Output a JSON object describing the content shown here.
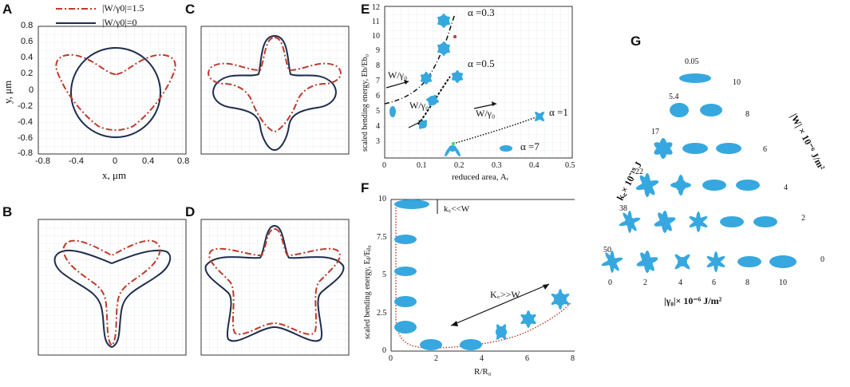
{
  "panels": {
    "A": "A",
    "B": "B",
    "C": "C",
    "D": "D",
    "E": "E",
    "F": "F",
    "G": "G"
  },
  "legend": {
    "dashed": "|W/γ0|=1.5",
    "solid": "|W/γ0|=0"
  },
  "colors": {
    "dashed": "#c0392b",
    "solid": "#1f2d4d",
    "grid": "#d7e3e6",
    "vesicle": "#36a8df"
  },
  "panelA": {
    "xlabel": "x, μm",
    "ylabel": "y, μm",
    "xticks": [
      "-0.8",
      "-0.4",
      "0",
      "0.4",
      "0.8"
    ],
    "yticks": [
      "0.8",
      "0.6",
      "0.4",
      "0.2",
      "0",
      "-0.2",
      "-0.4",
      "-0.6",
      "-0.8"
    ]
  },
  "panelE": {
    "ylabel": "scaled bending energy, Eb/Eb₀",
    "xlabel": "reduced area, Aᵣ",
    "xticks": [
      "0",
      "0.1",
      "0.2",
      "0.3",
      "0.4",
      "0.5"
    ],
    "yticks": [
      "12",
      "11",
      "10",
      "9",
      "8",
      "7",
      "6",
      "5",
      "4",
      "3"
    ],
    "alpha_labels": [
      "α =0.3",
      "α =0.5",
      "α =1",
      "α =7"
    ],
    "arrow_label": "W/γ₀"
  },
  "panelF": {
    "ylabel": "scaled bending energy, Eᵦ/Eᵦ₀",
    "xlabel": "R/R₀",
    "xticks": [
      "0",
      "2",
      "4",
      "6",
      "8"
    ],
    "yticks": [
      "10",
      "7.5",
      "5",
      "2.5",
      "0"
    ],
    "kc_label": "k꜀<<W",
    "k_label": "K꜀>>W"
  },
  "panelG": {
    "kc_axis": "k꜀× 10⁻¹⁹ J",
    "w_axis": "|W| × 10⁻⁶ J/m²",
    "gamma_axis": "|γ₀|× 10⁻⁶ J/m²",
    "kc_values": [
      "0.05",
      "5.4",
      "17",
      "22",
      "38",
      "50"
    ],
    "w_values": [
      "10",
      "8",
      "6",
      "4",
      "2",
      "0"
    ],
    "gamma_values": [
      "0",
      "2",
      "4",
      "6",
      "8",
      "10"
    ]
  }
}
